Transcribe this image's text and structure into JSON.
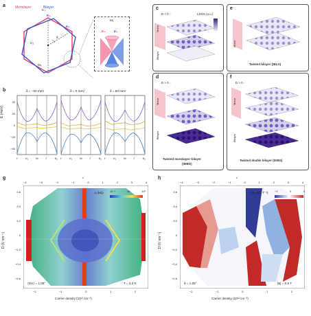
{
  "panel_labels": {
    "a": "a",
    "b": "b",
    "c": "c",
    "d": "d",
    "e": "e",
    "f": "f",
    "g": "g",
    "h": "h"
  },
  "panel_a": {
    "monolayer": "Monolayer",
    "bilayer": "Bilayer",
    "c2": "C₂",
    "theta": "θ",
    "mx": "Mₓ",
    "k1": "K₁",
    "k2": "K₂",
    "inset_mx": "Mₓ",
    "inset_k1": "K₁",
    "inset_k2": "K₂"
  },
  "panel_b": {
    "ylabel": "E (meV)",
    "titles": [
      "δ = −50 meV",
      "δ = 0 meV",
      "δ = 50 meV"
    ],
    "yticks": [
      "40",
      "20",
      "0",
      "−20",
      "−40"
    ],
    "xticks": [
      "Γ",
      "K₁",
      "M",
      "Γ",
      "K₂"
    ]
  },
  "panel_c": {
    "condition": "D < 0",
    "arrow": "↑",
    "ldos": "LDOS (a.u.)",
    "mono": "Mono.",
    "bilayer": "Bilayer"
  },
  "panel_d": {
    "condition": "D > 0",
    "arrow": "↓",
    "mono": "Mono.",
    "bilayer": "Bilayer",
    "caption1": "Twisted monolayer–bilayer",
    "caption2": "(tMBG)"
  },
  "panel_e": {
    "mono": "Mono.",
    "caption": "Twisted bilayer (tBLG)"
  },
  "panel_f": {
    "condition": "D > 0",
    "arrow": "↓",
    "mono": "Mono.",
    "bilayer": "Bilayer",
    "caption": "Twisted double bilayer (tDBG)"
  },
  "panel_g": {
    "top_axis_label": "ν",
    "top_ticks": [
      "−4",
      "−3",
      "−2",
      "−1",
      "0",
      "1",
      "2",
      "3",
      "4"
    ],
    "ylabel": "D (V nm⁻¹)",
    "yticks": [
      "0.6",
      "0.4",
      "0.2",
      "0",
      "−0.2",
      "−0.4",
      "−0.6"
    ],
    "xlabel": "Carrier density (10¹² cm⁻²)",
    "xticks": [
      "−2",
      "−1",
      "0",
      "1",
      "2"
    ],
    "colorbar": "ρ (kΩ)",
    "cb_ticks": [
      "10⁻¹",
      "10",
      "10²"
    ],
    "annot_left": "⟨D/ε⟩ = 1.08°",
    "annot_right": "T = 0.3 K"
  },
  "panel_h": {
    "top_axis_label": "ν",
    "top_ticks": [
      "−4",
      "−3",
      "−2",
      "−1",
      "0",
      "1",
      "2",
      "3",
      "4"
    ],
    "ylabel": "D (V nm⁻¹)",
    "yticks": [
      "0.6",
      "0.4",
      "0.2",
      "0",
      "−0.2",
      "−0.4",
      "−0.6"
    ],
    "xlabel": "Carrier density (10¹² cm⁻²)",
    "xticks": [
      "−2",
      "−1",
      "0",
      "1",
      "2"
    ],
    "colorbar": "Rₓᵧ (kΩ T⁻¹)",
    "cb_ticks": [
      "−2",
      "0",
      "2"
    ],
    "annot_left": "θ = 1.08°",
    "annot_right": "|B| = 0.5 T"
  },
  "colors": {
    "monolayer": "#e83a6e",
    "bilayer": "#2b55c9",
    "dark_purple": "#3e1f8a",
    "light_purple": "#9a8fd6"
  }
}
